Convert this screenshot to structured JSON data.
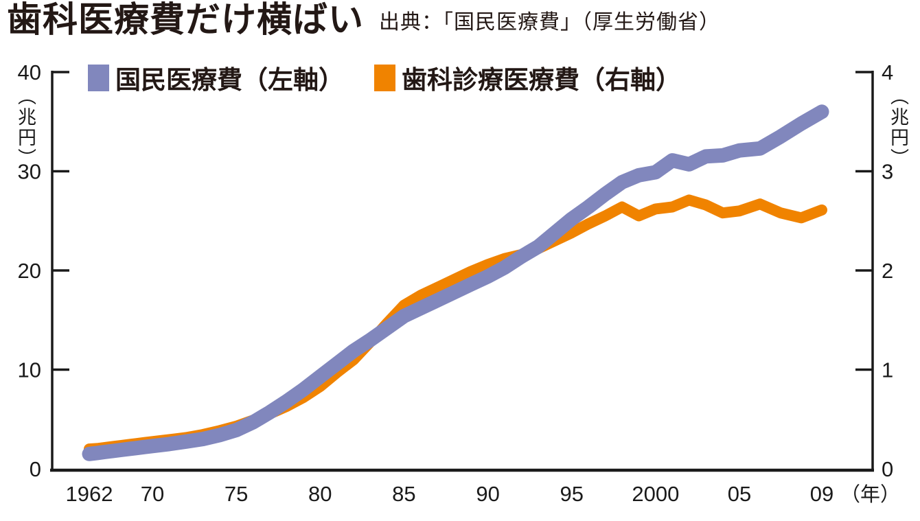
{
  "header": {
    "title": "歯科医療費だけ横ばい",
    "source": "出典：「国民医療費」（厚生労働省）"
  },
  "legend": [
    {
      "label": "国民医療費（左軸）",
      "color": "#8187bd"
    },
    {
      "label": "歯科診療医療費（右軸）",
      "color": "#f08300"
    }
  ],
  "colors": {
    "national_line": "#8187bd",
    "dental_line": "#f08300",
    "axis": "#1a1a1a",
    "background": "#ffffff",
    "text": "#231815"
  },
  "chart_data": {
    "type": "line",
    "title": "歯科医療費だけ横ばい",
    "source": "出典：「国民医療費」（厚生労働省）",
    "x_unit": "（年）",
    "x_tick_labels": [
      {
        "label": "1962",
        "year": 1962
      },
      {
        "label": "70",
        "year": 1970
      },
      {
        "label": "75",
        "year": 1975
      },
      {
        "label": "80",
        "year": 1980
      },
      {
        "label": "85",
        "year": 1985
      },
      {
        "label": "90",
        "year": 1990
      },
      {
        "label": "95",
        "year": 1995
      },
      {
        "label": "2000",
        "year": 2000
      },
      {
        "label": "05",
        "year": 2005
      },
      {
        "label": "09",
        "year": 2009
      }
    ],
    "left_axis": {
      "unit": "（兆円）",
      "range": [
        0,
        40
      ],
      "ticks": [
        0,
        10,
        20,
        30,
        40
      ]
    },
    "right_axis": {
      "unit": "（兆円）",
      "range": [
        0,
        4
      ],
      "ticks": [
        0,
        1,
        2,
        3,
        4
      ]
    },
    "grid": false,
    "legend_position": "top",
    "years": [
      1962,
      1963,
      1964,
      1965,
      1966,
      1967,
      1968,
      1969,
      1970,
      1971,
      1972,
      1973,
      1974,
      1975,
      1976,
      1977,
      1978,
      1979,
      1980,
      1981,
      1982,
      1983,
      1984,
      1985,
      1986,
      1987,
      1988,
      1989,
      1990,
      1991,
      1992,
      1993,
      1994,
      1995,
      1996,
      1997,
      1998,
      1999,
      2000,
      2001,
      2002,
      2003,
      2004,
      2005,
      2006,
      2007,
      2008,
      2009
    ],
    "series": [
      {
        "name": "歯科診療医療費（右軸）",
        "axis": "right",
        "color": "#f08300",
        "values": [
          0.2,
          0.205,
          0.215,
          0.225,
          0.235,
          0.245,
          0.255,
          0.265,
          0.275,
          0.295,
          0.315,
          0.345,
          0.385,
          0.43,
          0.49,
          0.555,
          0.63,
          0.72,
          0.83,
          0.97,
          1.1,
          1.28,
          1.47,
          1.65,
          1.75,
          1.83,
          1.91,
          1.99,
          2.06,
          2.12,
          2.16,
          2.22,
          2.3,
          2.38,
          2.47,
          2.55,
          2.64,
          2.55,
          2.62,
          2.64,
          2.71,
          2.66,
          2.58,
          2.6,
          2.67,
          2.58,
          2.53,
          2.61
        ]
      },
      {
        "name": "国民医療費（左軸）",
        "axis": "left",
        "color": "#8187bd",
        "values": [
          1.5,
          1.6,
          1.7,
          1.8,
          1.9,
          2.0,
          2.1,
          2.2,
          2.3,
          2.5,
          2.75,
          3.0,
          3.4,
          3.9,
          4.7,
          5.7,
          6.8,
          8.0,
          9.3,
          10.6,
          11.9,
          13.0,
          14.2,
          15.4,
          16.2,
          17.0,
          17.8,
          18.6,
          19.4,
          20.3,
          21.4,
          22.4,
          23.8,
          25.2,
          26.4,
          27.7,
          28.9,
          29.6,
          29.9,
          31.1,
          30.7,
          31.5,
          31.6,
          32.1,
          32.3,
          33.5,
          34.8,
          36.0
        ]
      }
    ]
  }
}
